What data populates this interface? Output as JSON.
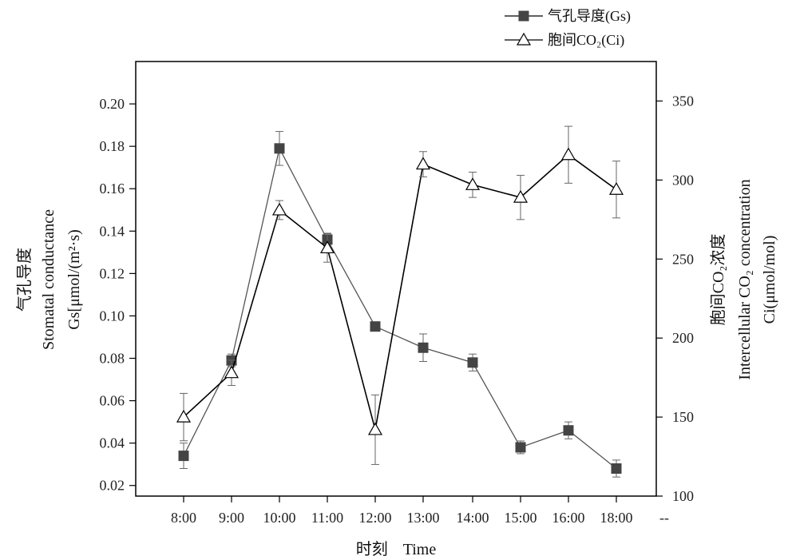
{
  "chart_data": {
    "type": "line",
    "categories": [
      "8:00",
      "9:00",
      "10:00",
      "11:00",
      "12:00",
      "13:00",
      "14:00",
      "15:00",
      "16:00",
      "18:00"
    ],
    "extra_tick_label": "--",
    "xlabel_cn": "时刻",
    "xlabel_en": "Time",
    "ylabel_left": [
      "气孔导度",
      "Stomatal conductance",
      "Gs[μmol/(m²·s)"
    ],
    "ylabel_right": [
      "胞间CO₂浓度",
      "Intercellular CO₂ concentration",
      "Ci(μmol/mol)"
    ],
    "y_left": {
      "min": 0.015,
      "max": 0.22,
      "ticks": [
        0.02,
        0.04,
        0.06,
        0.08,
        0.1,
        0.12,
        0.14,
        0.16,
        0.18,
        0.2
      ],
      "tick_labels": [
        "0.02",
        "0.04",
        "0.06",
        "0.08",
        "0.10",
        "0.12",
        "0.14",
        "0.16",
        "0.18",
        "0.20"
      ]
    },
    "y_right": {
      "min": 100,
      "max": 375,
      "ticks": [
        100,
        150,
        200,
        250,
        300,
        350
      ],
      "tick_labels": [
        "100",
        "150",
        "200",
        "250",
        "300",
        "350"
      ]
    },
    "series": [
      {
        "name": "气孔导度(Gs)",
        "axis": "left",
        "marker": "square",
        "color": "#555555",
        "marker_color": "#444444",
        "values": [
          0.034,
          0.079,
          0.179,
          0.136,
          0.095,
          0.085,
          0.078,
          0.038,
          0.046,
          0.028
        ],
        "errors": [
          0.006,
          0.003,
          0.008,
          0.003,
          0.0,
          0.0065,
          0.004,
          0.003,
          0.004,
          0.004
        ]
      },
      {
        "name": "胞间CO₂(Ci)",
        "axis": "right",
        "marker": "triangle-open",
        "color": "#000000",
        "marker_color": "#ffffff",
        "values": [
          150,
          178,
          281,
          257,
          142,
          310,
          297,
          289,
          316,
          294
        ],
        "errors": [
          15,
          8,
          6,
          9,
          22,
          8,
          8,
          14,
          18,
          18
        ]
      }
    ]
  }
}
